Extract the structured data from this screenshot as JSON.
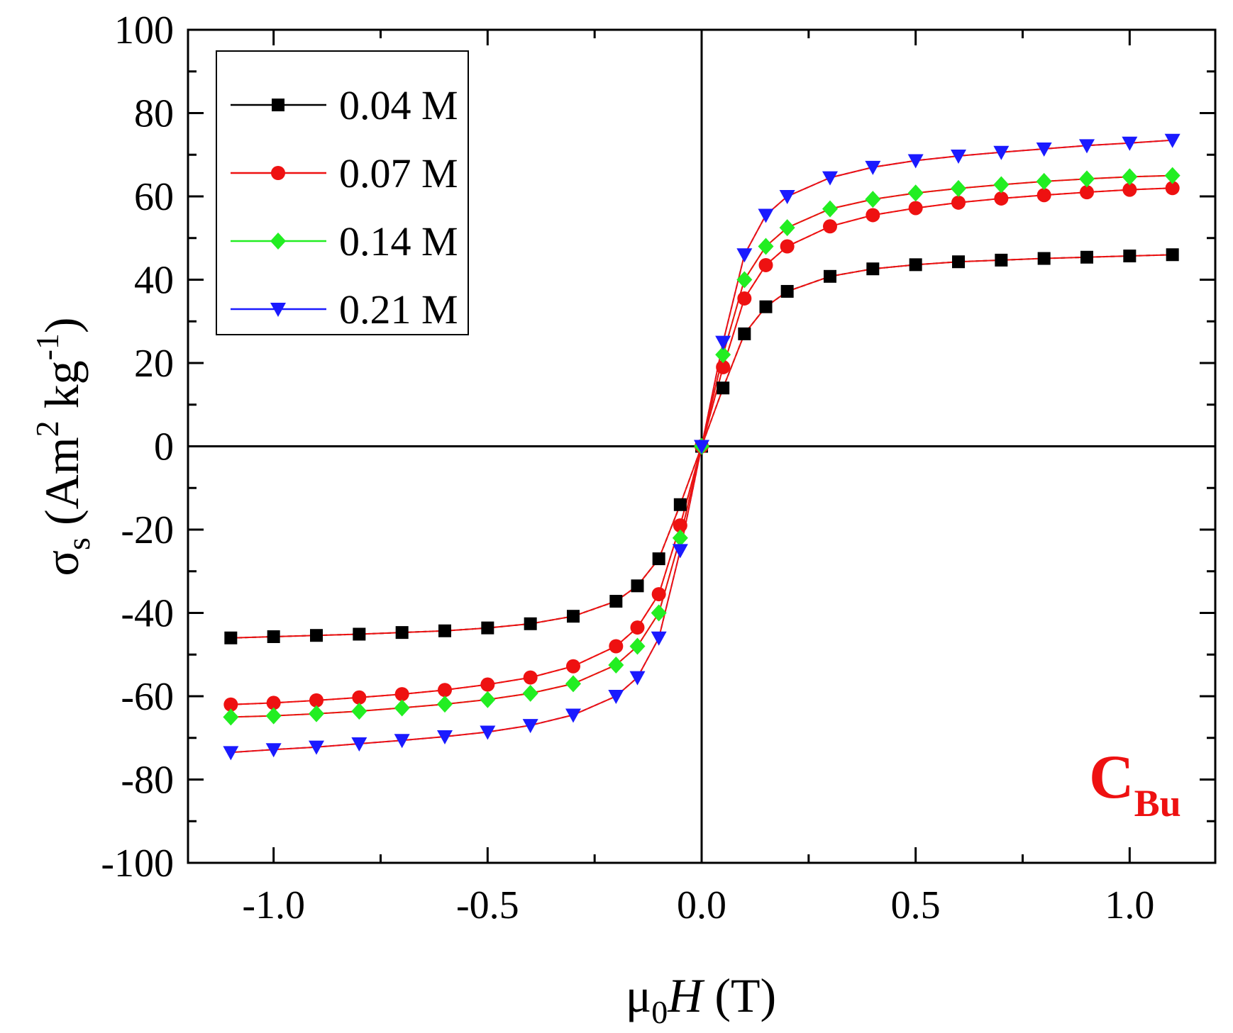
{
  "chart_data": {
    "type": "scatter",
    "xlabel": {
      "main": "μ",
      "sub": "0",
      "italic": "H",
      "unit": " (T)"
    },
    "ylabel": {
      "main": "σ",
      "sub": "s",
      "open": " (Am",
      "sup1": "2",
      "mid": " kg",
      "sup2": "-1",
      "close": ")"
    },
    "xlim": [
      -1.2,
      1.2
    ],
    "ylim": [
      -100,
      100
    ],
    "x_ticks": [
      -1.0,
      -0.5,
      0.0,
      0.5,
      1.0
    ],
    "x_tick_labels": [
      "-1.0",
      "-0.5",
      "0.0",
      "0.5",
      "1.0"
    ],
    "y_ticks": [
      -100,
      -80,
      -60,
      -40,
      -20,
      0,
      20,
      40,
      60,
      80,
      100
    ],
    "y_tick_labels": [
      "-100",
      "-80",
      "-60",
      "-40",
      "-20",
      "0",
      "20",
      "40",
      "60",
      "80",
      "100"
    ],
    "zero_lines": true,
    "legend_position": "top-left",
    "annotation": {
      "main": "C",
      "sub": "Bu",
      "color": "#ee1111",
      "position": "bottom-right"
    },
    "fit_line_color": "#ee1111",
    "series": [
      {
        "name": "0.04 M",
        "color": "#000000",
        "marker": "square",
        "x": [
          -1.1,
          -1.0,
          -0.9,
          -0.8,
          -0.7,
          -0.6,
          -0.5,
          -0.4,
          -0.3,
          -0.2,
          -0.15,
          -0.1,
          -0.05,
          0.0,
          0.05,
          0.1,
          0.15,
          0.2,
          0.3,
          0.4,
          0.5,
          0.6,
          0.7,
          0.8,
          0.9,
          1.0,
          1.1
        ],
        "y": [
          -46,
          -45.7,
          -45.4,
          -45.1,
          -44.7,
          -44.3,
          -43.6,
          -42.6,
          -40.8,
          -37.2,
          -33.5,
          -27,
          -14,
          0,
          14,
          27,
          33.5,
          37.2,
          40.8,
          42.6,
          43.6,
          44.3,
          44.7,
          45.1,
          45.4,
          45.7,
          46
        ]
      },
      {
        "name": "0.07 M",
        "color": "#ee1111",
        "marker": "circle",
        "x": [
          -1.1,
          -1.0,
          -0.9,
          -0.8,
          -0.7,
          -0.6,
          -0.5,
          -0.4,
          -0.3,
          -0.2,
          -0.15,
          -0.1,
          -0.05,
          0.0,
          0.05,
          0.1,
          0.15,
          0.2,
          0.3,
          0.4,
          0.5,
          0.6,
          0.7,
          0.8,
          0.9,
          1.0,
          1.1
        ],
        "y": [
          -62,
          -61.6,
          -61,
          -60.3,
          -59.5,
          -58.5,
          -57.2,
          -55.5,
          -52.8,
          -48,
          -43.5,
          -35.5,
          -19,
          0,
          19,
          35.5,
          43.5,
          48,
          52.8,
          55.5,
          57.2,
          58.5,
          59.5,
          60.3,
          61,
          61.6,
          62
        ]
      },
      {
        "name": "0.14 M",
        "color": "#22ee22",
        "marker": "diamond",
        "x": [
          -1.1,
          -1.0,
          -0.9,
          -0.8,
          -0.7,
          -0.6,
          -0.5,
          -0.4,
          -0.3,
          -0.2,
          -0.15,
          -0.1,
          -0.05,
          0.0,
          0.05,
          0.1,
          0.15,
          0.2,
          0.3,
          0.4,
          0.5,
          0.6,
          0.7,
          0.8,
          0.9,
          1.0,
          1.1
        ],
        "y": [
          -65,
          -64.7,
          -64.2,
          -63.6,
          -62.8,
          -61.9,
          -60.8,
          -59.3,
          -57,
          -52.5,
          -48,
          -40,
          -22,
          0,
          22,
          40,
          48,
          52.5,
          57,
          59.3,
          60.8,
          61.9,
          62.8,
          63.6,
          64.2,
          64.7,
          65
        ]
      },
      {
        "name": "0.21 M",
        "color": "#1a1aff",
        "marker": "triangle-down",
        "x": [
          -1.1,
          -1.0,
          -0.9,
          -0.8,
          -0.7,
          -0.6,
          -0.5,
          -0.4,
          -0.3,
          -0.2,
          -0.15,
          -0.1,
          -0.05,
          0.0,
          0.05,
          0.1,
          0.15,
          0.2,
          0.3,
          0.4,
          0.5,
          0.6,
          0.7,
          0.8,
          0.9,
          1.0,
          1.1
        ],
        "y": [
          -73.5,
          -72.8,
          -72.2,
          -71.4,
          -70.6,
          -69.7,
          -68.6,
          -67,
          -64.5,
          -60,
          -55.5,
          -46,
          -25,
          0,
          25,
          46,
          55.5,
          60,
          64.5,
          67,
          68.6,
          69.7,
          70.6,
          71.4,
          72.2,
          72.8,
          73.5
        ]
      }
    ]
  }
}
